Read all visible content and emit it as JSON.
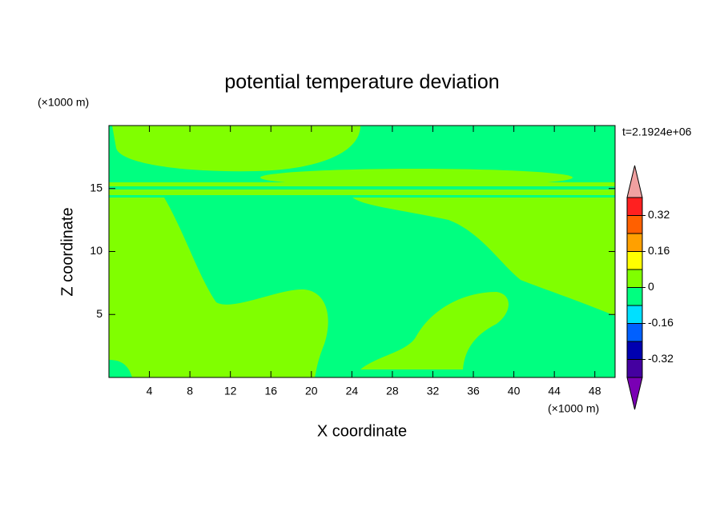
{
  "chart_data": {
    "type": "contour",
    "title": "potential temperature deviation",
    "x_label": "X coordinate",
    "y_label": "Z coordinate",
    "x_unit": "(×1000 m)",
    "y_unit": "(×1000 m)",
    "annotation": "t=2.1924e+06",
    "xlim": [
      0,
      50
    ],
    "ylim": [
      0,
      20
    ],
    "xticks": [
      4,
      8,
      12,
      16,
      20,
      24,
      28,
      32,
      36,
      40,
      44,
      48
    ],
    "yticks": [
      5,
      10,
      15
    ],
    "levels": [
      -0.4,
      -0.32,
      -0.24,
      -0.16,
      -0.08,
      0,
      0.08,
      0.16,
      0.24,
      0.32,
      0.4
    ],
    "colors": [
      "#7a00b4",
      "#4400a0",
      "#0000b0",
      "#0060ff",
      "#00e0ff",
      "#00ff80",
      "#80ff00",
      "#ffff00",
      "#ffa000",
      "#ff6000",
      "#ff2020",
      "#f0a0a0"
    ],
    "colorbar_ticks": [
      -0.32,
      -0.16,
      0,
      0.16,
      0.32
    ]
  }
}
